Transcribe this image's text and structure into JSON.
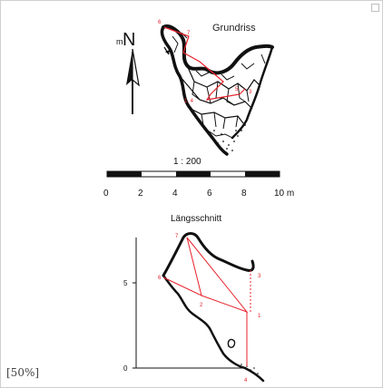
{
  "zoom": "[50%]",
  "plan": {
    "title": "Grundriss",
    "north_prefix": "m",
    "north_letter": "N",
    "points": {
      "p6": "6",
      "p7": "7",
      "p5": "5",
      "p3": "3",
      "p14": "1, 4"
    }
  },
  "scale": {
    "ratio": "1 : 200",
    "ticks": [
      "0",
      "2",
      "4",
      "6",
      "8",
      "10 m"
    ]
  },
  "section": {
    "title": "Längsschnitt",
    "axis_top": "5",
    "axis_bottom": "0",
    "points": {
      "p7": "7",
      "p6": "6",
      "p2": "2",
      "p3": "3",
      "p1": "1",
      "p4": "4"
    }
  },
  "colors": {
    "survey_red": "#e8222b",
    "ink": "#111111"
  }
}
